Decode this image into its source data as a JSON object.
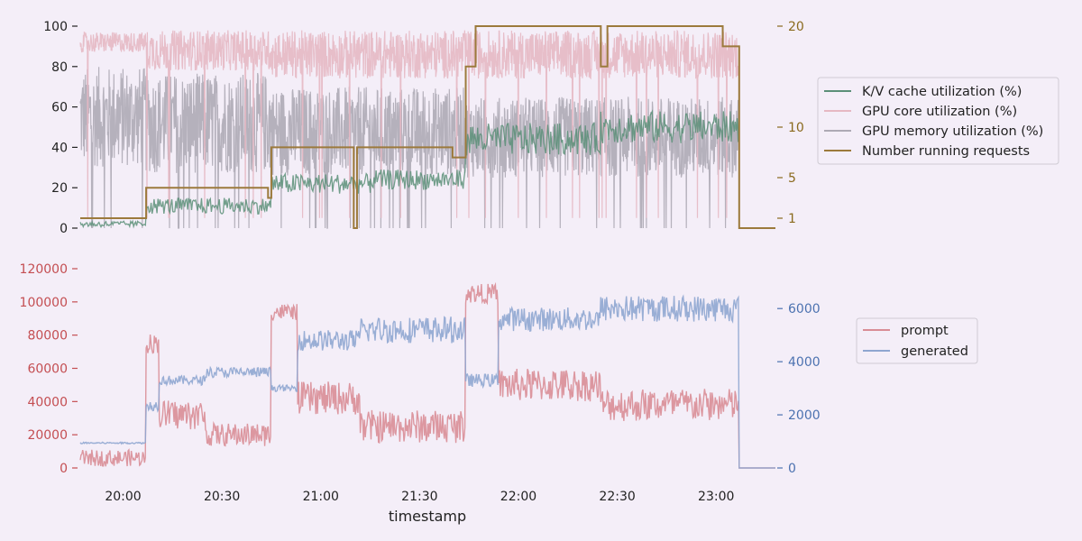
{
  "colors": {
    "background": "#f4eef8",
    "kv": "#5b8f78",
    "gpu_core": "#e6b8c3",
    "gpu_mem": "#aeaab5",
    "running": "#9c7a3c",
    "prompt": "#d98d96",
    "generated": "#8fa6d0",
    "left_axis_top": "#222222",
    "right_axis_top": "#8a6a1e",
    "left_axis_bottom": "#c44e52",
    "right_axis_bottom": "#4c72b0"
  },
  "chart_data": [
    {
      "type": "line",
      "panel": "top",
      "x_range": [
        "19:47",
        "23:18"
      ],
      "ylim_left": [
        0,
        100
      ],
      "left_ticks": [
        0,
        20,
        40,
        60,
        80,
        100
      ],
      "ylim_right_note": "right axis values 1, 5, 10, 20",
      "right_ticks": [
        1,
        5,
        10,
        20
      ],
      "legend_position": "right",
      "series": [
        {
          "name": "K/V cache utilization (%)",
          "axis": "left",
          "segments": [
            {
              "start": "19:47",
              "end": "20:07",
              "level": 2,
              "noise": 1.5
            },
            {
              "start": "20:07",
              "end": "20:45",
              "level": 11,
              "noise": 4
            },
            {
              "start": "20:45",
              "end": "21:15",
              "level": 22,
              "noise": 5
            },
            {
              "start": "21:15",
              "end": "21:44",
              "level": 24,
              "noise": 5
            },
            {
              "start": "21:44",
              "end": "22:25",
              "level": 44,
              "noise": 8
            },
            {
              "start": "22:25",
              "end": "23:07",
              "level": 50,
              "noise": 8
            },
            {
              "start": "23:07",
              "end": "23:18",
              "level": 0,
              "noise": 0
            }
          ]
        },
        {
          "name": "GPU core utilization (%)",
          "axis": "left",
          "segments": [
            {
              "start": "19:47",
              "end": "20:07",
              "level": 92,
              "noise": 5
            },
            {
              "start": "20:07",
              "end": "20:45",
              "level": 88,
              "noise": 10
            },
            {
              "start": "20:45",
              "end": "21:44",
              "level": 86,
              "noise": 12
            },
            {
              "start": "21:44",
              "end": "23:07",
              "level": 86,
              "noise": 12
            },
            {
              "start": "23:07",
              "end": "23:18",
              "level": 0,
              "noise": 0
            }
          ]
        },
        {
          "name": "GPU memory utilization (%)",
          "axis": "left",
          "segments": [
            {
              "start": "19:47",
              "end": "20:07",
              "level": 55,
              "noise": 25
            },
            {
              "start": "20:07",
              "end": "20:45",
              "level": 52,
              "noise": 25
            },
            {
              "start": "20:45",
              "end": "21:44",
              "level": 48,
              "noise": 22
            },
            {
              "start": "21:44",
              "end": "23:07",
              "level": 45,
              "noise": 20
            },
            {
              "start": "23:07",
              "end": "23:18",
              "level": 0,
              "noise": 0
            }
          ]
        },
        {
          "name": "Number running requests",
          "axis": "right",
          "steps": [
            {
              "start": "19:47",
              "value": 1
            },
            {
              "start": "20:07",
              "value": 4
            },
            {
              "start": "20:44",
              "value": 3
            },
            {
              "start": "20:45",
              "value": 8
            },
            {
              "start": "21:10",
              "value": 0
            },
            {
              "start": "21:11",
              "value": 8
            },
            {
              "start": "21:40",
              "value": 7
            },
            {
              "start": "21:44",
              "value": 16
            },
            {
              "start": "21:47",
              "value": 20
            },
            {
              "start": "22:25",
              "value": 16
            },
            {
              "start": "22:27",
              "value": 20
            },
            {
              "start": "23:02",
              "value": 18
            },
            {
              "start": "23:07",
              "value": 0
            }
          ]
        }
      ]
    },
    {
      "type": "line",
      "panel": "bottom",
      "xlabel": "timestamp",
      "x_ticks": [
        "20:00",
        "20:30",
        "21:00",
        "21:30",
        "22:00",
        "22:30",
        "23:00"
      ],
      "ylim_left": [
        0,
        120000
      ],
      "left_ticks": [
        0,
        20000,
        40000,
        60000,
        80000,
        100000,
        120000
      ],
      "ylim_right": [
        0,
        7500
      ],
      "right_ticks": [
        0,
        2000,
        4000,
        6000
      ],
      "legend_position": "right",
      "series": [
        {
          "name": "prompt",
          "axis": "left",
          "segments": [
            {
              "start": "19:47",
              "end": "20:07",
              "level": 6000,
              "noise": 5000
            },
            {
              "start": "20:07",
              "end": "20:11",
              "level": 75000,
              "noise": 6000
            },
            {
              "start": "20:11",
              "end": "20:25",
              "level": 32000,
              "noise": 9000
            },
            {
              "start": "20:25",
              "end": "20:45",
              "level": 20000,
              "noise": 7000
            },
            {
              "start": "20:45",
              "end": "20:53",
              "level": 94000,
              "noise": 5000
            },
            {
              "start": "20:53",
              "end": "21:12",
              "level": 42000,
              "noise": 10000
            },
            {
              "start": "21:12",
              "end": "21:44",
              "level": 25000,
              "noise": 10000
            },
            {
              "start": "21:44",
              "end": "21:54",
              "level": 105000,
              "noise": 6000
            },
            {
              "start": "21:54",
              "end": "22:25",
              "level": 50000,
              "noise": 10000
            },
            {
              "start": "22:25",
              "end": "23:07",
              "level": 38000,
              "noise": 10000
            },
            {
              "start": "23:07",
              "end": "23:18",
              "level": 0,
              "noise": 0
            }
          ]
        },
        {
          "name": "generated",
          "axis": "right",
          "segments": [
            {
              "start": "19:47",
              "end": "20:07",
              "level": 940,
              "noise": 30
            },
            {
              "start": "20:07",
              "end": "20:11",
              "level": 2350,
              "noise": 200
            },
            {
              "start": "20:11",
              "end": "20:25",
              "level": 3300,
              "noise": 180
            },
            {
              "start": "20:25",
              "end": "20:45",
              "level": 3600,
              "noise": 200
            },
            {
              "start": "20:45",
              "end": "20:53",
              "level": 3000,
              "noise": 120
            },
            {
              "start": "20:53",
              "end": "21:12",
              "level": 4800,
              "noise": 400
            },
            {
              "start": "21:12",
              "end": "21:44",
              "level": 5200,
              "noise": 500
            },
            {
              "start": "21:44",
              "end": "21:54",
              "level": 3300,
              "noise": 250
            },
            {
              "start": "21:54",
              "end": "22:25",
              "level": 5600,
              "noise": 450
            },
            {
              "start": "22:25",
              "end": "23:07",
              "level": 6000,
              "noise": 500
            },
            {
              "start": "23:07",
              "end": "23:18",
              "level": 0,
              "noise": 0
            }
          ]
        }
      ]
    }
  ]
}
